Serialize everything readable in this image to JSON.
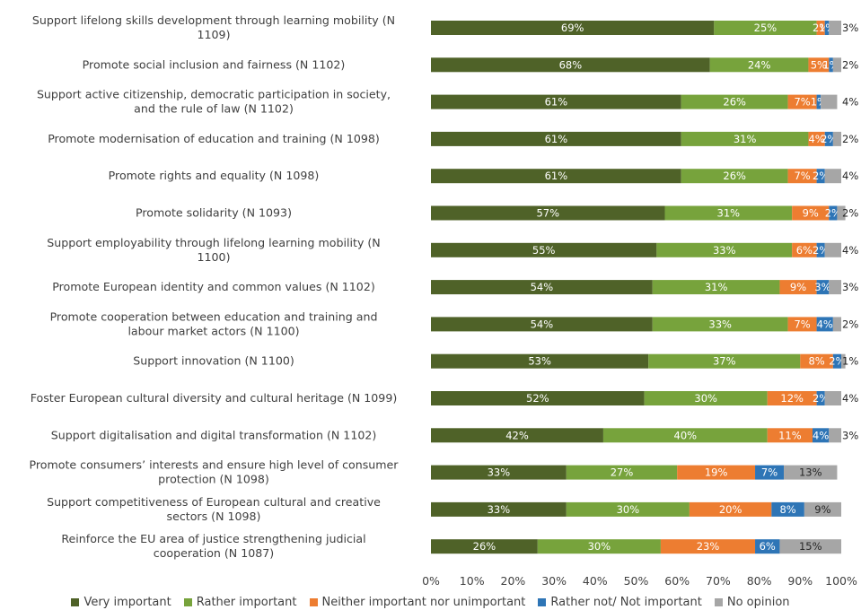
{
  "chart_data": {
    "type": "bar",
    "orientation": "horizontal",
    "stacked": true,
    "percent": true,
    "categories": [
      "Support lifelong skills development through learning mobility (N 1109)",
      "Promote social inclusion and fairness (N 1102)",
      "Support active citizenship, democratic participation in society, and the rule of law (N 1102)",
      "Promote modernisation of education and training (N 1098)",
      "Promote rights and equality (N 1098)",
      "Promote solidarity (N 1093)",
      "Support employability through lifelong learning mobility (N 1100)",
      "Promote European identity and common values (N 1102)",
      "Promote cooperation between education and training and labour market actors (N 1100)",
      "Support innovation (N 1100)",
      "Foster European cultural diversity and cultural heritage (N 1099)",
      "Support digitalisation and digital transformation (N 1102)",
      "Promote consumers’ interests and ensure high level of consumer protection (N 1098)",
      "Support competitiveness of European cultural and creative sectors (N 1098)",
      "Reinforce the EU area of justice strengthening judicial cooperation (N 1087)"
    ],
    "category_lines": [
      [
        "Support lifelong skills development through learning mobility (N",
        "1109)"
      ],
      [
        "Promote social inclusion and fairness (N 1102)"
      ],
      [
        "Support active citizenship, democratic participation in society,",
        "and the rule of law (N 1102)"
      ],
      [
        "Promote modernisation of education and training (N 1098)"
      ],
      [
        "Promote rights and equality (N 1098)"
      ],
      [
        "Promote solidarity (N 1093)"
      ],
      [
        "Support employability through lifelong learning mobility (N",
        "1100)"
      ],
      [
        "Promote European identity and common values (N 1102)"
      ],
      [
        "Promote cooperation between education and training and",
        "labour market actors (N 1100)"
      ],
      [
        "Support innovation (N 1100)"
      ],
      [
        "Foster European cultural diversity and cultural heritage (N 1099)"
      ],
      [
        "Support digitalisation and digital transformation (N 1102)"
      ],
      [
        "Promote consumers’ interests and ensure high level of consumer",
        "protection (N 1098)"
      ],
      [
        "Support competitiveness of European cultural and creative",
        "sectors (N 1098)"
      ],
      [
        "Reinforce the EU area of justice strengthening judicial",
        "cooperation (N 1087)"
      ]
    ],
    "series": [
      {
        "name": "Very important",
        "color": "#4f6228",
        "values": [
          69,
          68,
          61,
          61,
          61,
          57,
          55,
          54,
          54,
          53,
          52,
          42,
          33,
          33,
          26
        ]
      },
      {
        "name": "Rather important",
        "color": "#77a33c",
        "values": [
          25,
          24,
          26,
          31,
          26,
          31,
          33,
          31,
          33,
          37,
          30,
          40,
          27,
          30,
          30
        ]
      },
      {
        "name": "Neither important nor unimportant",
        "color": "#ed7d31",
        "values": [
          2,
          5,
          7,
          4,
          7,
          9,
          6,
          9,
          7,
          8,
          12,
          11,
          19,
          20,
          23
        ]
      },
      {
        "name": "Rather not/ Not important",
        "color": "#2e75b6",
        "values": [
          1,
          1,
          1,
          2,
          2,
          2,
          2,
          3,
          4,
          2,
          2,
          4,
          7,
          8,
          6
        ]
      },
      {
        "name": "No opinion",
        "color": "#a6a6a6",
        "values": [
          3,
          2,
          4,
          2,
          4,
          2,
          4,
          3,
          2,
          1,
          4,
          3,
          13,
          9,
          15
        ]
      }
    ],
    "xlim": [
      0,
      100
    ],
    "xticks": [
      "0%",
      "10%",
      "20%",
      "30%",
      "40%",
      "50%",
      "60%",
      "70%",
      "80%",
      "90%",
      "100%"
    ],
    "legend_position": "bottom",
    "grid": false
  }
}
